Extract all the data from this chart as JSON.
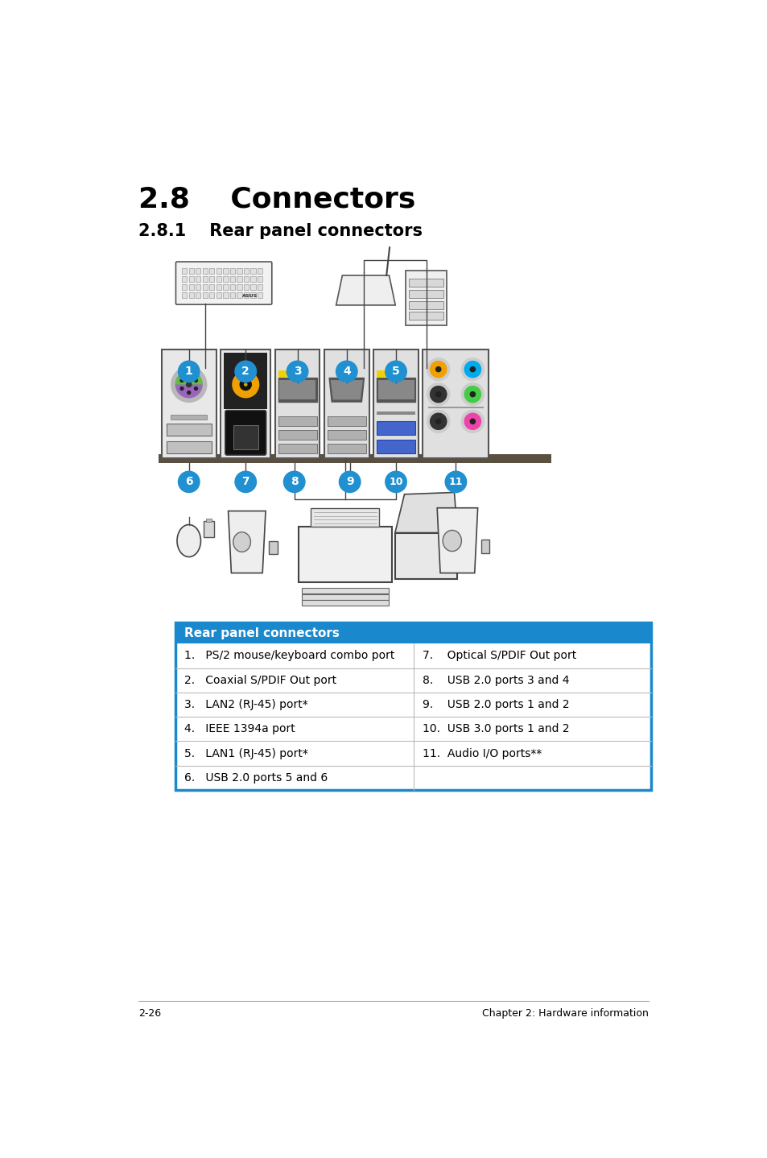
{
  "page_bg": "#ffffff",
  "title_main": "2.8    Connectors",
  "title_sub": "2.8.1    Rear panel connectors",
  "title_main_fontsize": 26,
  "title_sub_fontsize": 15,
  "title_color": "#000000",
  "table_header": "Rear panel connectors",
  "table_header_bg": "#1a88cc",
  "table_header_color": "#ffffff",
  "table_header_fontsize": 11,
  "table_border_color": "#1a88cc",
  "table_line_color": "#bbbbbb",
  "table_text_color": "#000000",
  "table_text_fontsize": 10,
  "left_items": [
    "1.   PS/2 mouse/keyboard combo port",
    "2.   Coaxial S/PDIF Out port",
    "3.   LAN2 (RJ-45) port*",
    "4.   IEEE 1394a port",
    "5.   LAN1 (RJ-45) port*",
    "6.   USB 2.0 ports 5 and 6"
  ],
  "right_items": [
    "7.    Optical S/PDIF Out port",
    "8.    USB 2.0 ports 3 and 4",
    "9.    USB 2.0 ports 1 and 2",
    "10.  USB 3.0 ports 1 and 2",
    "11.  Audio I/O ports**",
    ""
  ],
  "footer_left": "2-26",
  "footer_right": "Chapter 2: Hardware information",
  "footer_fontsize": 9,
  "footer_line_color": "#aaaaaa",
  "bubble_color": "#2090d0",
  "bubble_text_color": "#ffffff"
}
